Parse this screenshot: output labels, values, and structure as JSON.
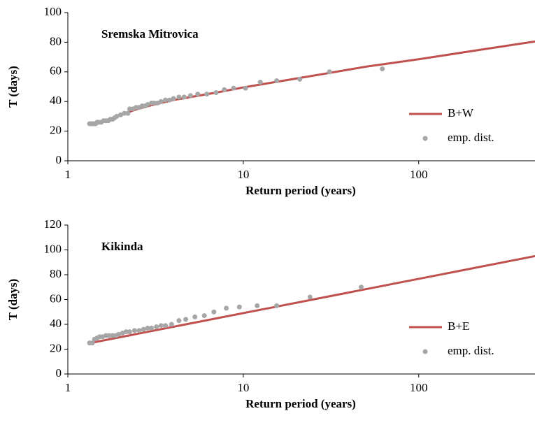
{
  "chart_data": [
    {
      "type": "line",
      "annotation": "Sremska Mitrovica",
      "xlabel": "Return period (years)",
      "ylabel": "T (days)",
      "xscale": "log",
      "xlim": [
        1,
        460
      ],
      "xticks": [
        1,
        10,
        100
      ],
      "ylim": [
        0,
        100
      ],
      "yticks": [
        0,
        20,
        40,
        60,
        80,
        100
      ],
      "legend": "lower right",
      "series": [
        {
          "name": "B+W",
          "color": "#c0504d",
          "type": "line",
          "x": [
            1.35,
            1.5,
            1.7,
            2,
            2.5,
            3,
            4,
            5,
            7,
            10,
            20,
            30,
            50,
            100,
            200,
            460
          ],
          "values": [
            24.5,
            26,
            28,
            31,
            35,
            37.5,
            41,
            43,
            46,
            49.5,
            55.5,
            59,
            63.5,
            68.5,
            74,
            80.5
          ]
        },
        {
          "name": "emp. dist.",
          "color": "#a6a6a6",
          "type": "scatter",
          "x": [
            1.33,
            1.36,
            1.38,
            1.41,
            1.44,
            1.47,
            1.5,
            1.55,
            1.6,
            1.65,
            1.7,
            1.75,
            1.8,
            1.85,
            1.9,
            2.0,
            2.1,
            2.2,
            2.25,
            2.35,
            2.45,
            2.55,
            2.65,
            2.75,
            2.85,
            3.0,
            3.1,
            3.25,
            3.4,
            3.6,
            3.8,
            4.0,
            4.3,
            4.6,
            5.0,
            5.5,
            6.2,
            7,
            7.8,
            8.8,
            10.3,
            12.5,
            15.5,
            21,
            31,
            62
          ],
          "values": [
            25,
            25,
            25,
            25,
            25,
            26,
            26,
            26,
            27,
            27,
            27,
            28,
            28,
            29,
            30,
            31,
            32,
            32,
            35,
            35,
            36,
            36,
            37,
            37,
            38,
            39,
            39,
            39,
            40,
            41,
            41,
            42,
            43,
            43,
            44,
            45,
            45,
            46,
            48,
            49,
            49,
            53,
            54,
            55,
            60,
            62
          ]
        }
      ]
    },
    {
      "type": "line",
      "annotation": "Kikinda",
      "xlabel": "Return period (years)",
      "ylabel": "T (days)",
      "xscale": "log",
      "xlim": [
        1,
        460
      ],
      "xticks": [
        1,
        10,
        100
      ],
      "ylim": [
        0,
        120
      ],
      "yticks": [
        0,
        20,
        40,
        60,
        80,
        100,
        120
      ],
      "legend": "lower right",
      "series": [
        {
          "name": "B+E",
          "color": "#c0504d",
          "type": "line",
          "x": [
            1.35,
            460
          ],
          "values": [
            25,
            95
          ]
        },
        {
          "name": "emp. dist.",
          "color": "#a6a6a6",
          "type": "scatter",
          "x": [
            1.33,
            1.38,
            1.42,
            1.47,
            1.52,
            1.58,
            1.65,
            1.72,
            1.8,
            1.88,
            1.95,
            2.05,
            2.15,
            2.25,
            2.4,
            2.55,
            2.7,
            2.85,
            3.0,
            3.2,
            3.4,
            3.6,
            3.9,
            4.3,
            4.7,
            5.3,
            6.0,
            6.8,
            8,
            9.5,
            12,
            15.5,
            24,
            47
          ],
          "values": [
            25,
            25,
            28,
            29,
            30,
            30,
            31,
            31,
            31,
            31,
            32,
            33,
            34,
            34,
            35,
            35,
            36,
            37,
            37,
            38,
            39,
            39,
            40,
            43,
            44,
            46,
            47,
            50,
            53,
            54,
            55,
            55,
            62,
            70
          ]
        }
      ]
    }
  ]
}
